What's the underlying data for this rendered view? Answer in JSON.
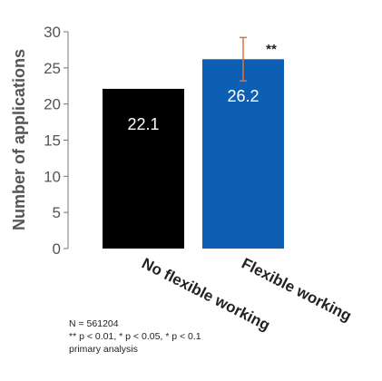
{
  "chart_data": {
    "type": "bar",
    "categories": [
      "No flexible working",
      "Flexible working"
    ],
    "values": [
      22.1,
      26.2
    ],
    "value_labels": [
      "22.1",
      "26.2"
    ],
    "bar_colors": [
      "#000000",
      "#0d5fb3"
    ],
    "error_bars": [
      null,
      {
        "low": 23.2,
        "high": 29.2
      }
    ],
    "error_bar_color": "#e0703a",
    "significance": [
      "",
      "**"
    ],
    "ylabel": "Number of applications",
    "xlabel": "",
    "title": "",
    "ylim": [
      0,
      30
    ],
    "yticks": [
      0,
      5,
      10,
      15,
      20,
      25,
      30
    ],
    "grid": false,
    "legend": "none",
    "faint_label": "22.1"
  },
  "notes": {
    "n": "N = 561204",
    "significance_key": "** p < 0.01, * p < 0.05, * p < 0.1",
    "analysis": "primary analysis"
  }
}
